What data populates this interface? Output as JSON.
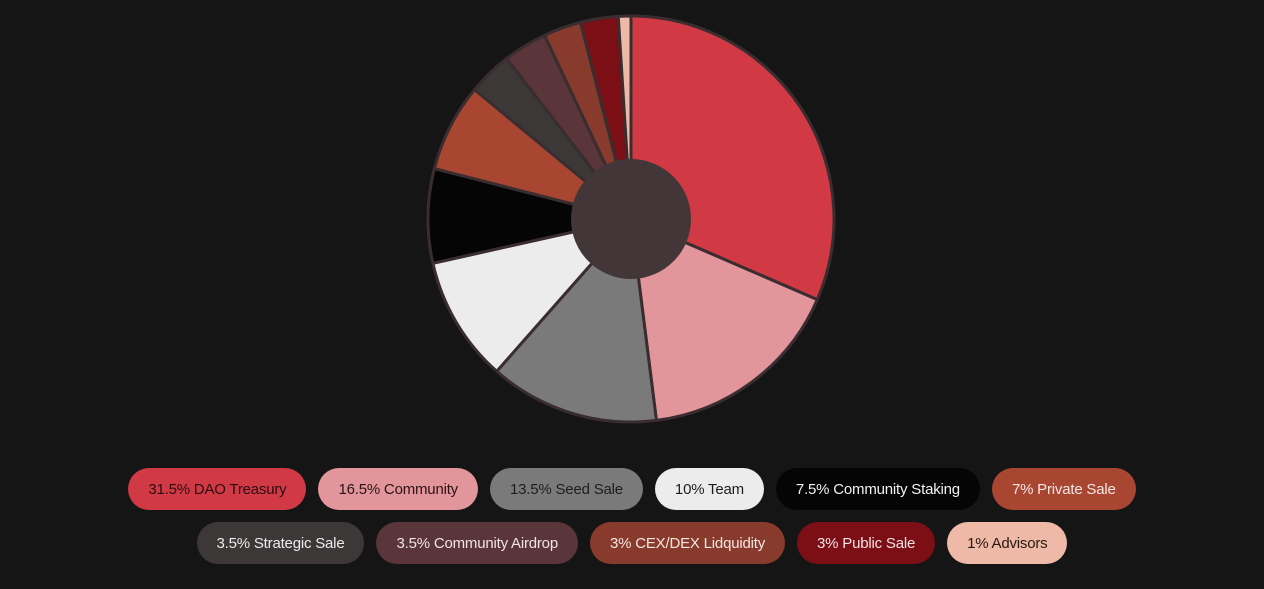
{
  "chart_data": {
    "type": "pie",
    "donut": true,
    "slices": [
      {
        "label": "DAO Treasury",
        "value": 31.5,
        "legend_text": "31.5% DAO Treasury",
        "color": "#D13A45",
        "text_color": "#2a0c10"
      },
      {
        "label": "Community",
        "value": 16.5,
        "legend_text": "16.5% Community",
        "color": "#E2959A",
        "text_color": "#2a1416"
      },
      {
        "label": "Seed Sale",
        "value": 13.5,
        "legend_text": "13.5% Seed Sale",
        "color": "#7A7A7A",
        "text_color": "#1e1e1e"
      },
      {
        "label": "Team",
        "value": 10,
        "legend_text": "10% Team",
        "color": "#ECECEC",
        "text_color": "#1e1e1e"
      },
      {
        "label": "Community Staking",
        "value": 7.5,
        "legend_text": "7.5% Community Staking",
        "color": "#050505",
        "text_color": "#f2f2f2"
      },
      {
        "label": "Private Sale",
        "value": 7,
        "legend_text": "7% Private Sale",
        "color": "#A84632",
        "text_color": "#f4e6e2"
      },
      {
        "label": "Strategic Sale",
        "value": 3.5,
        "legend_text": "3.5% Strategic Sale",
        "color": "#3C3838",
        "text_color": "#ececec"
      },
      {
        "label": "Community Airdrop",
        "value": 3.5,
        "legend_text": "3.5% Community Airdrop",
        "color": "#5A3539",
        "text_color": "#f0e4e5"
      },
      {
        "label": "CEX/DEX Lidquidity",
        "value": 3,
        "legend_text": "3% CEX/DEX Lidquidity",
        "color": "#883B2C",
        "text_color": "#f4e6e2"
      },
      {
        "label": "Public Sale",
        "value": 3,
        "legend_text": "3% Public Sale",
        "color": "#7C0E16",
        "text_color": "#f4e2e3"
      },
      {
        "label": "Advisors",
        "value": 1,
        "legend_text": "1% Advisors",
        "color": "#EEB9A6",
        "text_color": "#2a1814"
      }
    ],
    "center_color": "#433638",
    "border_color": "#3a2d30",
    "legend_placement": "bottom"
  }
}
